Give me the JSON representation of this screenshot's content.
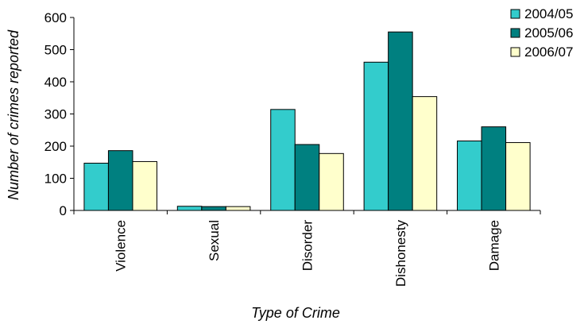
{
  "chart_data": {
    "type": "bar",
    "categories": [
      "Violence",
      "Sexual",
      "Disorder",
      "Dishonesty",
      "Damage"
    ],
    "series": [
      {
        "name": "2004/05",
        "values": [
          147,
          13,
          314,
          461,
          216
        ],
        "color": "#33CCCC"
      },
      {
        "name": "2005/06",
        "values": [
          186,
          12,
          205,
          555,
          260
        ],
        "color": "#008080"
      },
      {
        "name": "2006/07",
        "values": [
          152,
          12,
          177,
          354,
          211
        ],
        "color": "#FFFFCC"
      }
    ],
    "xlabel": "Type of Crime",
    "ylabel": "Number of crimes reported",
    "ylim": [
      0,
      600
    ],
    "yticks": [
      0,
      100,
      200,
      300,
      400,
      500,
      600
    ],
    "grid": false,
    "legend_position": "top-right"
  }
}
